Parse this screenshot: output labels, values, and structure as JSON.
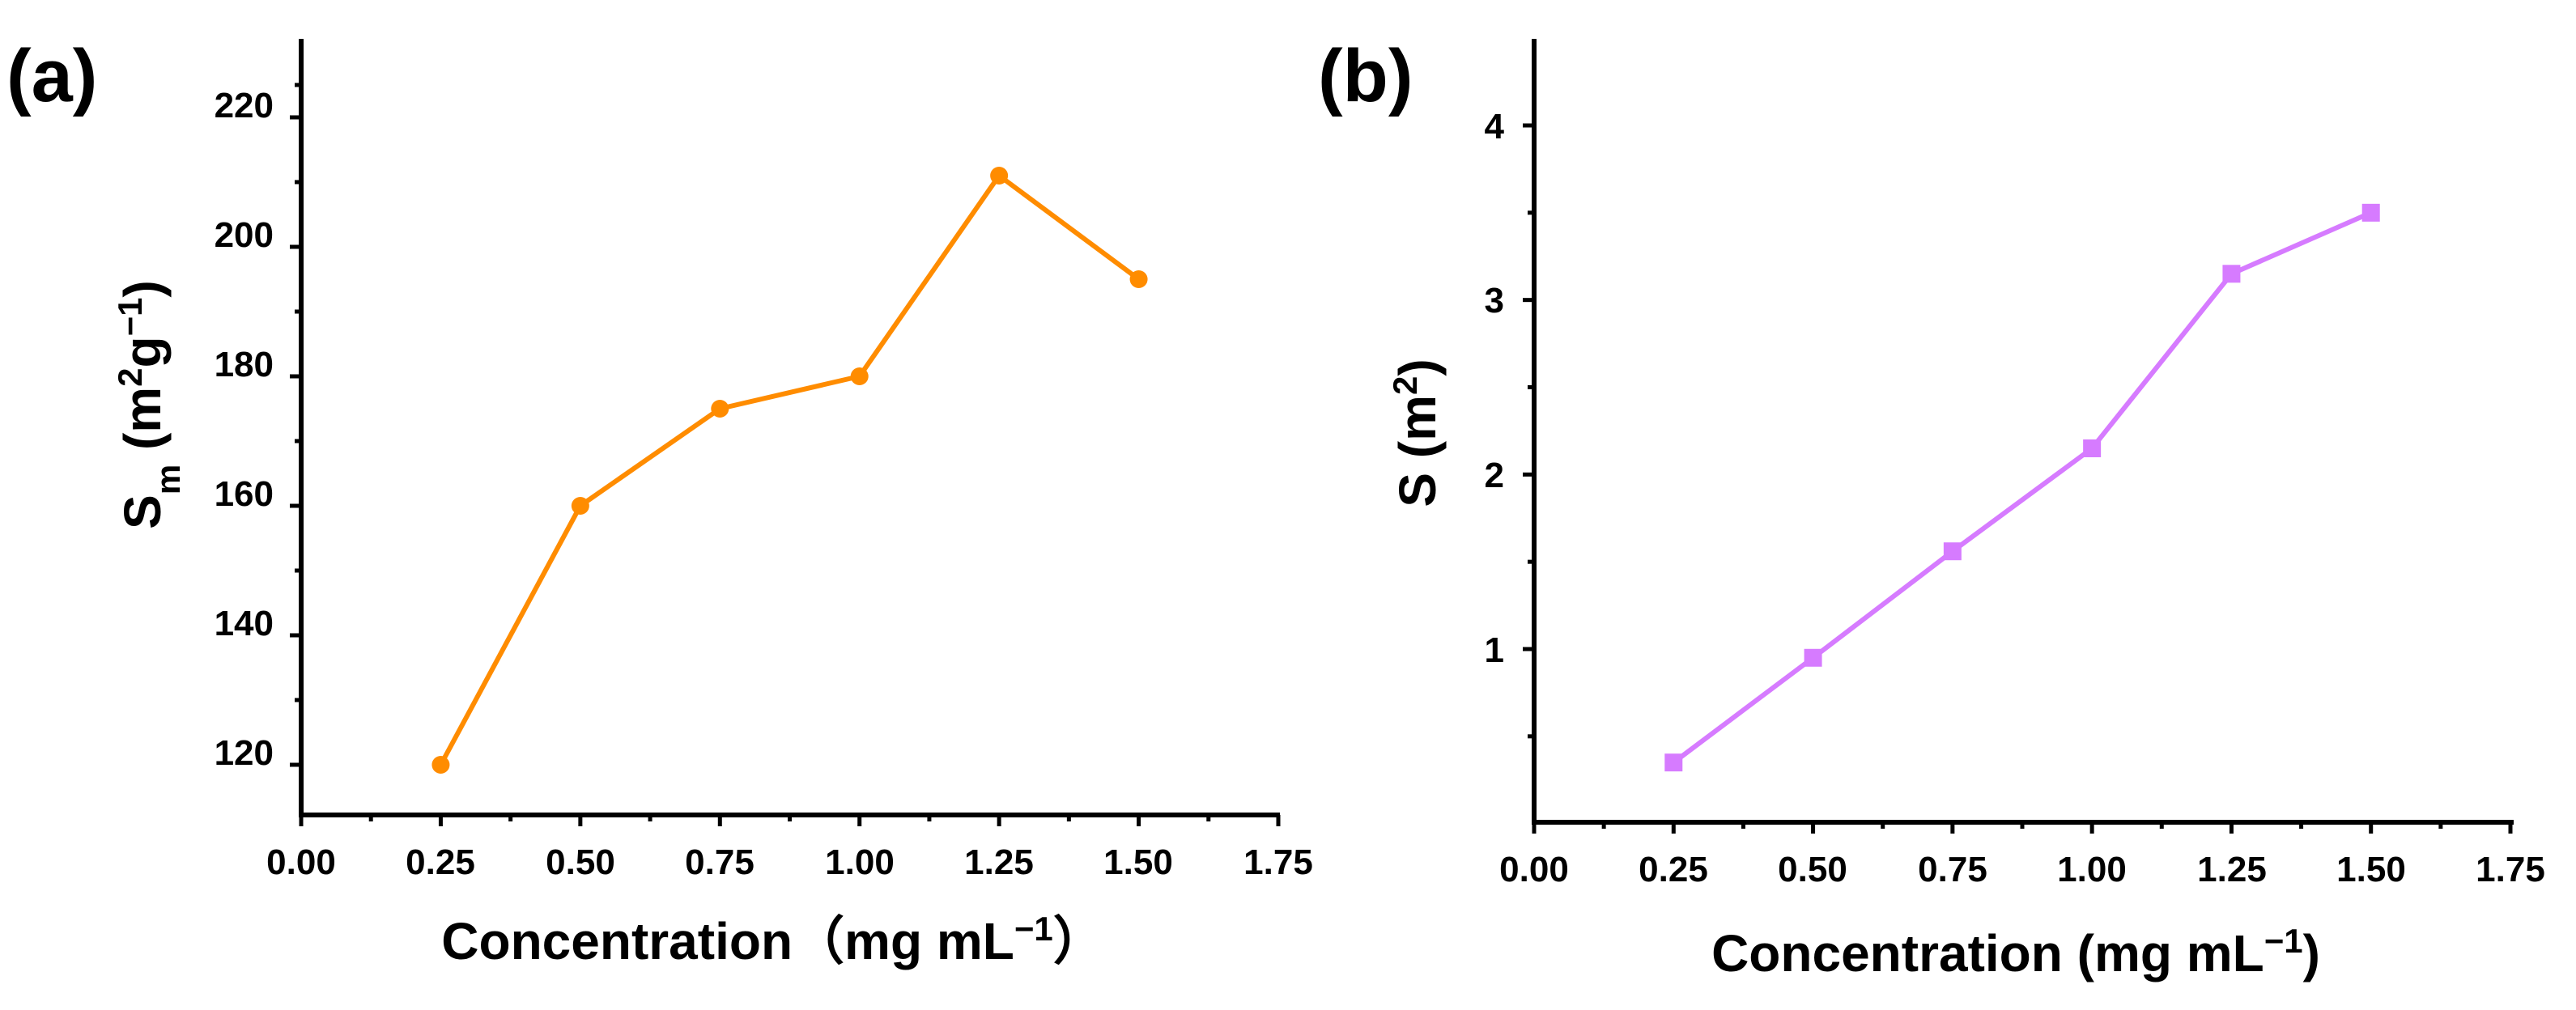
{
  "chart_data": [
    {
      "panel_label": "(a)",
      "type": "line",
      "marker": "circle",
      "color": "#FF8C00",
      "x": [
        0.25,
        0.5,
        0.75,
        1.0,
        1.25,
        1.5
      ],
      "values": [
        120,
        160,
        175,
        180,
        211,
        195
      ],
      "xlim": [
        0.0,
        1.75
      ],
      "ylim": [
        110,
        230
      ],
      "x_ticks": [
        "0.00",
        "0.25",
        "0.50",
        "0.75",
        "1.00",
        "1.25",
        "1.50",
        "1.75"
      ],
      "y_ticks": [
        "120",
        "140",
        "160",
        "180",
        "200",
        "220"
      ],
      "xlabel": {
        "main": "Concentration（mg mL",
        "sup": "−1",
        "tail": "）"
      },
      "ylabel": {
        "main": "S",
        "sub": "m",
        "unit_open": " (m",
        "sup1": "2",
        "mid": "g",
        "sup2": "−1",
        "close": ")"
      },
      "grid": false
    },
    {
      "panel_label": "(b)",
      "type": "line",
      "marker": "square",
      "color": "#D67BFF",
      "x": [
        0.25,
        0.5,
        0.75,
        1.0,
        1.25,
        1.5
      ],
      "values": [
        0.35,
        0.95,
        1.56,
        2.15,
        3.15,
        3.5
      ],
      "xlim": [
        0.0,
        1.75
      ],
      "ylim": [
        0.0,
        4.5
      ],
      "x_ticks": [
        "0.00",
        "0.25",
        "0.50",
        "0.75",
        "1.00",
        "1.25",
        "1.50",
        "1.75"
      ],
      "y_ticks": [
        "1",
        "2",
        "3",
        "4"
      ],
      "xlabel": {
        "main": "Concentration (mg mL",
        "sup": "−1",
        "tail": ")"
      },
      "ylabel": {
        "main": "S",
        "unit_open": " (m",
        "sup1": "2",
        "close": ")"
      },
      "grid": false
    }
  ]
}
